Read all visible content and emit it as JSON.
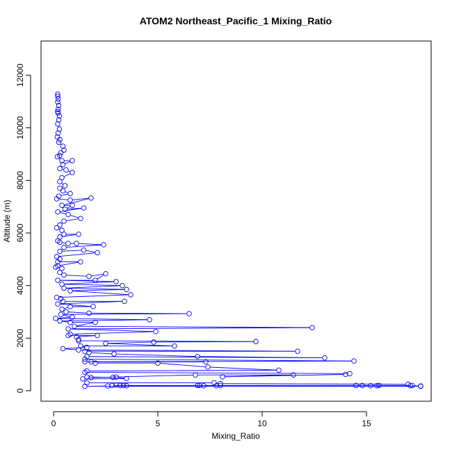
{
  "chart_data": {
    "type": "line",
    "title": "ATOM2 Northeast_Pacific_1 Mixing_Ratio",
    "xlabel": "Mixing_Ratio",
    "ylabel": "Altitude (m)",
    "xlim": [
      -0.6,
      18.1
    ],
    "ylim": [
      -400,
      13300
    ],
    "xticks": [
      0,
      5,
      10,
      15
    ],
    "yticks": [
      0,
      2000,
      4000,
      6000,
      8000,
      10000,
      12000
    ],
    "grid": false,
    "legend": "none",
    "series": [
      {
        "color": "#0000ff",
        "marker": "open-circle",
        "points": [
          [
            0.2,
            11280
          ],
          [
            0.2,
            11200
          ],
          [
            0.22,
            11100
          ],
          [
            0.2,
            10980
          ],
          [
            0.25,
            10850
          ],
          [
            0.22,
            10700
          ],
          [
            0.2,
            10620
          ],
          [
            0.22,
            10560
          ],
          [
            0.28,
            10450
          ],
          [
            0.25,
            10300
          ],
          [
            0.2,
            10150
          ],
          [
            0.28,
            9950
          ],
          [
            0.22,
            9800
          ],
          [
            0.18,
            9650
          ],
          [
            0.3,
            9550
          ],
          [
            0.25,
            9450
          ],
          [
            0.45,
            9300
          ],
          [
            0.5,
            9150
          ],
          [
            0.35,
            9050
          ],
          [
            0.3,
            8950
          ],
          [
            0.18,
            8900
          ],
          [
            0.4,
            8750
          ],
          [
            0.9,
            8750
          ],
          [
            0.45,
            8600
          ],
          [
            0.3,
            8450
          ],
          [
            0.6,
            8400
          ],
          [
            0.9,
            8300
          ],
          [
            0.4,
            8100
          ],
          [
            0.3,
            7950
          ],
          [
            0.55,
            7800
          ],
          [
            0.3,
            7700
          ],
          [
            0.45,
            7600
          ],
          [
            0.8,
            7500
          ],
          [
            0.25,
            7400
          ],
          [
            0.15,
            7300
          ],
          [
            0.8,
            7250
          ],
          [
            1.8,
            7330
          ],
          [
            0.4,
            7050
          ],
          [
            0.9,
            7050
          ],
          [
            0.55,
            6900
          ],
          [
            1.45,
            6950
          ],
          [
            0.2,
            6800
          ],
          [
            0.7,
            6700
          ],
          [
            1.3,
            6550
          ],
          [
            0.5,
            6450
          ],
          [
            0.3,
            6300
          ],
          [
            0.15,
            6200
          ],
          [
            0.4,
            6100
          ],
          [
            0.5,
            5950
          ],
          [
            1.2,
            5950
          ],
          [
            0.3,
            5850
          ],
          [
            0.2,
            5700
          ],
          [
            0.3,
            5650
          ],
          [
            0.7,
            5600
          ],
          [
            1.1,
            5600
          ],
          [
            2.4,
            5550
          ],
          [
            0.5,
            5450
          ],
          [
            0.3,
            5300
          ],
          [
            1.45,
            5350
          ],
          [
            2.1,
            5250
          ],
          [
            0.15,
            5100
          ],
          [
            0.3,
            5000
          ],
          [
            0.2,
            4900
          ],
          [
            1.3,
            4900
          ],
          [
            0.2,
            4750
          ],
          [
            0.1,
            4700
          ],
          [
            0.4,
            4650
          ],
          [
            0.3,
            4500
          ],
          [
            0.5,
            4400
          ],
          [
            1.7,
            4350
          ],
          [
            2.5,
            4450
          ],
          [
            2.0,
            4200
          ],
          [
            0.2,
            4200
          ],
          [
            3.0,
            4150
          ],
          [
            0.4,
            4050
          ],
          [
            3.3,
            4000
          ],
          [
            0.5,
            3900
          ],
          [
            3.5,
            3850
          ],
          [
            0.8,
            3800
          ],
          [
            3.7,
            3650
          ],
          [
            0.15,
            3550
          ],
          [
            0.35,
            3500
          ],
          [
            0.45,
            3400
          ],
          [
            3.4,
            3400
          ],
          [
            0.2,
            3300
          ],
          [
            1.9,
            3200
          ],
          [
            0.8,
            3200
          ],
          [
            0.4,
            3100
          ],
          [
            0.6,
            3000
          ],
          [
            1.7,
            2950
          ],
          [
            6.5,
            2930
          ],
          [
            0.35,
            2900
          ],
          [
            0.9,
            2800
          ],
          [
            0.1,
            2750
          ],
          [
            4.6,
            2700
          ],
          [
            0.3,
            2650
          ],
          [
            0.8,
            2600
          ],
          [
            2.0,
            2600
          ],
          [
            1.0,
            2450
          ],
          [
            12.4,
            2400
          ],
          [
            0.7,
            2350
          ],
          [
            4.9,
            2250
          ],
          [
            0.8,
            2150
          ],
          [
            0.7,
            2100
          ],
          [
            2.1,
            2100
          ],
          [
            1.1,
            2050
          ],
          [
            1.2,
            1950
          ],
          [
            1.2,
            1900
          ],
          [
            9.7,
            1870
          ],
          [
            4.8,
            1850
          ],
          [
            2.5,
            1800
          ],
          [
            5.8,
            1700
          ],
          [
            1.3,
            1700
          ],
          [
            1.6,
            1650
          ],
          [
            0.45,
            1600
          ],
          [
            1.2,
            1550
          ],
          [
            11.7,
            1500
          ],
          [
            1.5,
            1500
          ],
          [
            1.7,
            1450
          ],
          [
            2.9,
            1400
          ],
          [
            6.9,
            1300
          ],
          [
            13.0,
            1250
          ],
          [
            1.6,
            1300
          ],
          [
            1.5,
            1200
          ],
          [
            14.4,
            1130
          ],
          [
            1.5,
            1100
          ],
          [
            7.3,
            1100
          ],
          [
            1.8,
            1100
          ],
          [
            2.0,
            1050
          ],
          [
            5.0,
            1050
          ],
          [
            7.4,
            900
          ],
          [
            10.8,
            780
          ],
          [
            1.6,
            750
          ],
          [
            1.5,
            700
          ],
          [
            14.2,
            650
          ],
          [
            14.0,
            620
          ],
          [
            8.1,
            530
          ],
          [
            11.5,
            600
          ],
          [
            6.8,
            600
          ],
          [
            1.8,
            500
          ],
          [
            1.6,
            520
          ],
          [
            2.85,
            510
          ],
          [
            3.0,
            520
          ],
          [
            3.5,
            460
          ],
          [
            1.4,
            450
          ],
          [
            1.6,
            300
          ],
          [
            7.7,
            300
          ],
          [
            8.0,
            270
          ],
          [
            17.0,
            250
          ],
          [
            17.2,
            200
          ],
          [
            2.8,
            200
          ],
          [
            3.0,
            210
          ],
          [
            3.2,
            200
          ],
          [
            3.35,
            200
          ],
          [
            3.5,
            190
          ],
          [
            6.9,
            200
          ],
          [
            7.0,
            200
          ],
          [
            7.2,
            190
          ],
          [
            7.8,
            190
          ],
          [
            8.0,
            200
          ],
          [
            14.5,
            200
          ],
          [
            14.8,
            200
          ],
          [
            15.2,
            190
          ],
          [
            15.5,
            190
          ],
          [
            15.6,
            200
          ],
          [
            17.1,
            190
          ],
          [
            17.6,
            180
          ],
          [
            17.6,
            170
          ],
          [
            1.5,
            170
          ],
          [
            2.6,
            180
          ]
        ]
      }
    ]
  }
}
